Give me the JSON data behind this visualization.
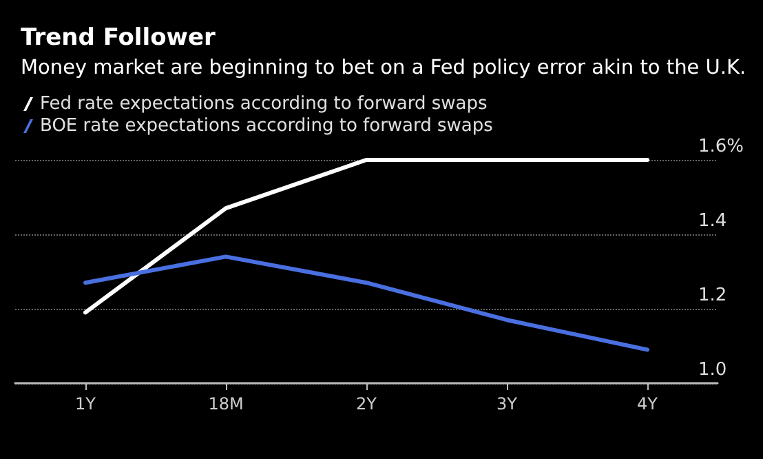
{
  "chart_data": {
    "type": "line",
    "title": "Trend Follower",
    "subtitle": "Money market are beginning to bet on a Fed policy error akin to the U.K.",
    "categories": [
      "1Y",
      "18M",
      "2Y",
      "3Y",
      "4Y"
    ],
    "series": [
      {
        "name": "Fed rate expectations according to forward swaps",
        "color": "#ffffff",
        "values": [
          1.19,
          1.47,
          1.6,
          1.6,
          1.6
        ]
      },
      {
        "name": "BOE rate expectations according to forward swaps",
        "color": "#4a6fe0",
        "values": [
          1.27,
          1.34,
          1.27,
          1.17,
          1.09
        ]
      }
    ],
    "ylim": [
      1.0,
      1.6
    ],
    "yticks": [
      {
        "value": 1.0,
        "label": "1.0"
      },
      1.2,
      1.4,
      {
        "value": 1.6,
        "label": "1.6%"
      }
    ],
    "grid": "y",
    "legend": "top left",
    "marker": "none",
    "line_style": "solid"
  }
}
